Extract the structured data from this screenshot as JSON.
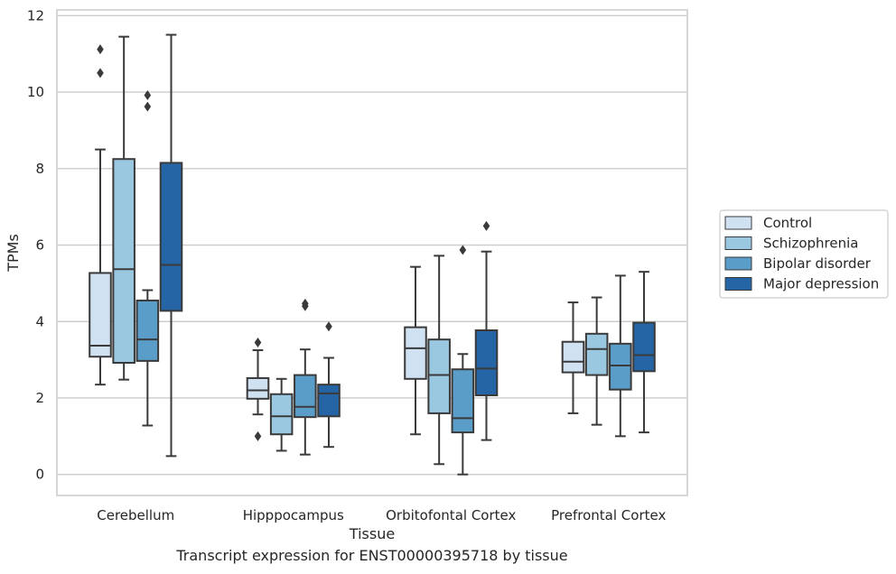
{
  "caption": "Transcript expression for ENST00000395718 by tissue",
  "chart_data": {
    "type": "boxplot",
    "title": "",
    "xlabel": "Tissue",
    "ylabel": "TPMs",
    "ylim": [
      -0.55,
      12.15
    ],
    "yticks": [
      0,
      2,
      4,
      6,
      8,
      10,
      12
    ],
    "grid": "horizontal",
    "legend_position": "right",
    "categories": [
      "Cerebellum",
      "Hipppocampus",
      "Orbitofontal Cortex",
      "Prefrontal Cortex"
    ],
    "series": [
      {
        "name": "Control",
        "color": "#d0e1f2",
        "boxes": [
          {
            "whisker_low": 2.35,
            "q1": 3.08,
            "median": 3.37,
            "q3": 5.27,
            "whisker_high": 8.5,
            "outliers": [
              10.5,
              11.12
            ]
          },
          {
            "whisker_low": 1.57,
            "q1": 1.98,
            "median": 2.2,
            "q3": 2.52,
            "whisker_high": 3.25,
            "outliers": [
              1.0,
              3.45
            ]
          },
          {
            "whisker_low": 1.05,
            "q1": 2.5,
            "median": 3.3,
            "q3": 3.85,
            "whisker_high": 5.43,
            "outliers": []
          },
          {
            "whisker_low": 1.6,
            "q1": 2.67,
            "median": 2.95,
            "q3": 3.47,
            "whisker_high": 4.5,
            "outliers": []
          }
        ]
      },
      {
        "name": "Schizophrenia",
        "color": "#9ac8e0",
        "boxes": [
          {
            "whisker_low": 2.48,
            "q1": 2.92,
            "median": 5.37,
            "q3": 8.25,
            "whisker_high": 11.45,
            "outliers": []
          },
          {
            "whisker_low": 0.62,
            "q1": 1.05,
            "median": 1.52,
            "q3": 2.1,
            "whisker_high": 2.5,
            "outliers": []
          },
          {
            "whisker_low": 0.27,
            "q1": 1.6,
            "median": 2.6,
            "q3": 3.53,
            "whisker_high": 5.72,
            "outliers": []
          },
          {
            "whisker_low": 1.3,
            "q1": 2.6,
            "median": 3.28,
            "q3": 3.68,
            "whisker_high": 4.63,
            "outliers": []
          }
        ]
      },
      {
        "name": "Bipolar disorder",
        "color": "#5a9dc8",
        "boxes": [
          {
            "whisker_low": 1.28,
            "q1": 2.97,
            "median": 3.53,
            "q3": 4.55,
            "whisker_high": 4.82,
            "outliers": [
              9.62,
              9.92
            ]
          },
          {
            "whisker_low": 0.52,
            "q1": 1.5,
            "median": 1.77,
            "q3": 2.6,
            "whisker_high": 3.27,
            "outliers": [
              4.4,
              4.47
            ]
          },
          {
            "whisker_low": 0.0,
            "q1": 1.1,
            "median": 1.47,
            "q3": 2.75,
            "whisker_high": 3.15,
            "outliers": [
              5.87
            ]
          },
          {
            "whisker_low": 1.0,
            "q1": 2.22,
            "median": 2.85,
            "q3": 3.42,
            "whisker_high": 5.2,
            "outliers": []
          }
        ]
      },
      {
        "name": "Major depression",
        "color": "#2565a6",
        "boxes": [
          {
            "whisker_low": 0.48,
            "q1": 4.28,
            "median": 5.48,
            "q3": 8.15,
            "whisker_high": 11.5,
            "outliers": []
          },
          {
            "whisker_low": 0.72,
            "q1": 1.52,
            "median": 2.12,
            "q3": 2.35,
            "whisker_high": 3.05,
            "outliers": [
              3.87
            ]
          },
          {
            "whisker_low": 0.9,
            "q1": 2.07,
            "median": 2.77,
            "q3": 3.77,
            "whisker_high": 5.83,
            "outliers": [
              6.5
            ]
          },
          {
            "whisker_low": 1.1,
            "q1": 2.7,
            "median": 3.12,
            "q3": 3.97,
            "whisker_high": 5.3,
            "outliers": []
          }
        ]
      }
    ]
  }
}
